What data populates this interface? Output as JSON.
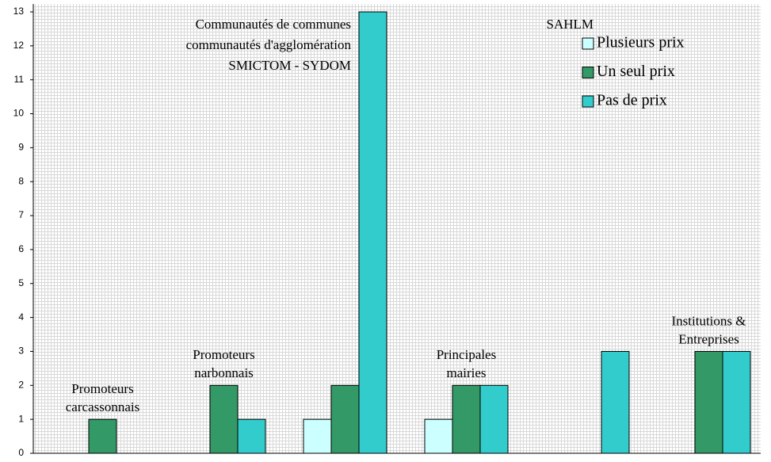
{
  "chart_data": {
    "type": "bar",
    "categories": [
      [
        "Promoteurs",
        "carcassonnais"
      ],
      [
        "Promoteurs",
        "narbonnais"
      ],
      [
        "Communautés de communes",
        "communautés d'agglomération",
        "SMICTOM - SYDOM"
      ],
      [
        "Principales",
        "mairies"
      ],
      [
        "SAHLM"
      ],
      [
        "Institutions &",
        "Entreprises"
      ]
    ],
    "series": [
      {
        "name": "Plusieurs prix",
        "color": "#ccffff",
        "values": [
          0,
          0,
          1,
          1,
          0,
          0
        ]
      },
      {
        "name": "Un seul prix",
        "color": "#339966",
        "values": [
          1,
          2,
          2,
          2,
          0,
          3
        ]
      },
      {
        "name": "Pas de prix",
        "color": "#33cccc",
        "values": [
          0,
          1,
          13,
          2,
          3,
          3
        ]
      }
    ],
    "ylim": [
      0,
      13
    ],
    "yticks": [
      0,
      1,
      2,
      3,
      4,
      5,
      6,
      7,
      8,
      9,
      10,
      11,
      12,
      13
    ],
    "legend": "upper right"
  }
}
